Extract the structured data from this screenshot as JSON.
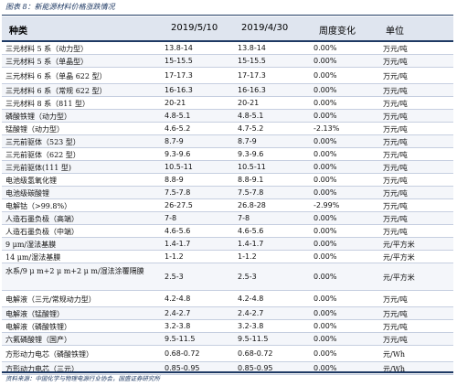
{
  "caption": "图表 8：新能源材料价格涨跌情况",
  "header": {
    "name": "种类",
    "date1": "2019/5/10",
    "date2": "2019/4/30",
    "change": "周度变化",
    "unit": "单位"
  },
  "rows": [
    {
      "name": "三元材料 5 系（动力型）",
      "v1": "13.8-14",
      "v2": "13.8-14",
      "chg": "0.00%",
      "unit": "万元/吨"
    },
    {
      "name": "三元材料 5 系（单晶型）",
      "v1": "15-15.5",
      "v2": "15-15.5",
      "chg": "0.00%",
      "unit": "万元/吨"
    },
    {
      "name": "三元材料 6 系（单晶 622 型）",
      "v1": "17-17.3",
      "v2": "17-17.3",
      "chg": "0.00%",
      "unit": "万元/吨"
    },
    {
      "name": "三元材料 6 系（常规 622 型）",
      "v1": "16-16.3",
      "v2": "16-16.3",
      "chg": "0.00%",
      "unit": "万元/吨"
    },
    {
      "name": "三元材料 8 系（811 型）",
      "v1": "20-21",
      "v2": "20-21",
      "chg": "0.00%",
      "unit": "万元/吨"
    },
    {
      "name": "磷酸铁锂（动力型）",
      "v1": "4.8-5.1",
      "v2": "4.8-5.1",
      "chg": "0.00%",
      "unit": "万元/吨"
    },
    {
      "name": "锰酸锂（动力型）",
      "v1": "4.6-5.2",
      "v2": "4.7-5.2",
      "chg": "-2.13%",
      "unit": "万元/吨"
    },
    {
      "name": "三元前驱体（523 型）",
      "v1": "8.7-9",
      "v2": "8.7-9",
      "chg": "0.00%",
      "unit": "万元/吨"
    },
    {
      "name": "三元前驱体（622 型）",
      "v1": "9.3-9.6",
      "v2": "9.3-9.6",
      "chg": "0.00%",
      "unit": "万元/吨"
    },
    {
      "name": "三元前驱体(111 型)",
      "v1": "10.5-11",
      "v2": "10.5-11",
      "chg": "0.00%",
      "unit": "万元/吨"
    },
    {
      "name": "电池级氢氧化锂",
      "v1": "8.8-9",
      "v2": "8.8-9.1",
      "chg": "0.00%",
      "unit": "万元/吨"
    },
    {
      "name": "电池级碳酸锂",
      "v1": "7.5-7.8",
      "v2": "7.5-7.8",
      "chg": "0.00%",
      "unit": "万元/吨"
    },
    {
      "name": "电解钴（>99.8%）",
      "v1": "26-27.5",
      "v2": "26.8-28",
      "chg": "-2.99%",
      "unit": "万元/吨"
    },
    {
      "name": "人造石墨负极（高端）",
      "v1": "7-8",
      "v2": "7-8",
      "chg": "0.00%",
      "unit": "万元/吨"
    },
    {
      "name": "人造石墨负极（中端）",
      "v1": "4.6-5.6",
      "v2": "4.6-5.6",
      "chg": "0.00%",
      "unit": "万元/吨"
    },
    {
      "name": "9 μm/湿法基膜",
      "v1": "1.4-1.7",
      "v2": "1.4-1.7",
      "chg": "0.00%",
      "unit": "元/平方米"
    },
    {
      "name": "14 μm/湿法基膜",
      "v1": "1-1.2",
      "v2": "1-1.2",
      "chg": "0.00%",
      "unit": "元/平方米"
    },
    {
      "name": "水系/9 μ m+2 μ m+2 μ m/湿法涂覆隔膜",
      "v1": "2.5-3",
      "v2": "2.5-3",
      "chg": "0.00%",
      "unit": "元/平方米"
    },
    {
      "name": "电解液（三元/常规动力型）",
      "v1": "4.2-4.8",
      "v2": "4.2-4.8",
      "chg": "0.00%",
      "unit": "万元/吨"
    },
    {
      "name": "电解液（锰酸锂）",
      "v1": "2.4-2.7",
      "v2": "2.4-2.7",
      "chg": "0.00%",
      "unit": "万元/吨"
    },
    {
      "name": "电解液（磷酸铁锂）",
      "v1": "3.2-3.8",
      "v2": "3.2-3.8",
      "chg": "0.00%",
      "unit": "万元/吨"
    },
    {
      "name": "六氟磷酸锂（国产）",
      "v1": "9.5-11.5",
      "v2": "9.5-11.5",
      "chg": "0.00%",
      "unit": "万元/吨"
    },
    {
      "name": "方形动力电芯（磷酸铁锂）",
      "v1": "0.68-0.72",
      "v2": "0.68-0.72",
      "chg": "0.00%",
      "unit": "元/Wh"
    },
    {
      "name": "方形动力电芯（三元）",
      "v1": "0.85-0.95",
      "v2": "0.85-0.95",
      "chg": "0.00%",
      "unit": "元/Wh"
    }
  ],
  "source": "资料来源：中国化学与物理电源行业协会，国盛证券研究所"
}
